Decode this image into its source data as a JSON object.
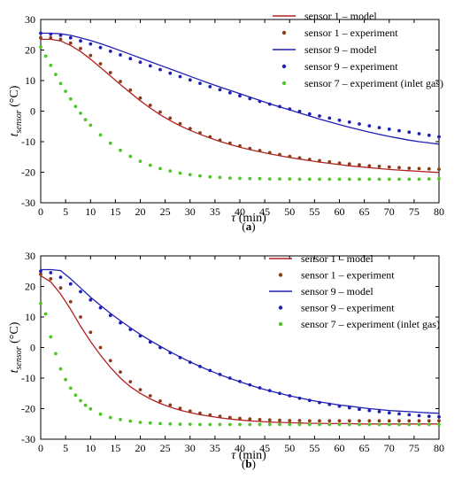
{
  "chart_data": [
    {
      "type": "line",
      "panel_label": "(a)",
      "xlabel": "τ (min)",
      "ylabel": "t sensor (°C)",
      "ylabel_main": "t",
      "ylabel_sub": "sensor",
      "ylabel_unit": "(°C)",
      "xlabel_main": "τ",
      "xlabel_unit": "(min)",
      "xlim": [
        0,
        80
      ],
      "ylim": [
        -30,
        30
      ],
      "xticks": [
        0,
        5,
        10,
        15,
        20,
        25,
        30,
        35,
        40,
        45,
        50,
        55,
        60,
        65,
        70,
        75,
        80
      ],
      "yticks": [
        -30,
        -20,
        -10,
        0,
        10,
        20,
        30
      ],
      "grid": false,
      "legend_position": "top-right",
      "series": [
        {
          "name": "sensor 1 – model",
          "kind": "line",
          "color": "#b22222",
          "x": [
            0,
            2,
            4,
            6,
            8,
            10,
            12,
            14,
            16,
            18,
            20,
            22,
            24,
            26,
            28,
            30,
            32,
            34,
            36,
            38,
            40,
            42,
            44,
            46,
            48,
            50,
            52,
            54,
            56,
            58,
            60,
            62,
            64,
            66,
            68,
            70,
            72,
            74,
            76,
            78,
            80
          ],
          "y": [
            23.5,
            23.5,
            23.0,
            21.5,
            19.5,
            17.0,
            14.3,
            11.5,
            8.7,
            6.0,
            3.4,
            1.0,
            -1.2,
            -3.1,
            -4.8,
            -6.3,
            -7.6,
            -8.8,
            -9.9,
            -10.9,
            -11.8,
            -12.6,
            -13.3,
            -14.0,
            -14.6,
            -15.2,
            -15.7,
            -16.2,
            -16.7,
            -17.1,
            -17.5,
            -17.9,
            -18.2,
            -18.5,
            -18.8,
            -19.1,
            -19.3,
            -19.5,
            -19.7,
            -19.9,
            -20.1
          ]
        },
        {
          "name": "sensor 1 – experiment",
          "kind": "points",
          "color": "#8b3a1a",
          "x": [
            0,
            2,
            4,
            6,
            8,
            10,
            12,
            14,
            16,
            18,
            20,
            22,
            24,
            26,
            28,
            30,
            32,
            34,
            36,
            38,
            40,
            42,
            44,
            46,
            48,
            50,
            52,
            54,
            56,
            58,
            60,
            62,
            64,
            66,
            68,
            70,
            72,
            74,
            76,
            78,
            80
          ],
          "y": [
            24.0,
            24.0,
            23.5,
            22.3,
            20.5,
            18.2,
            15.5,
            12.6,
            9.7,
            6.9,
            4.3,
            1.9,
            -0.3,
            -2.3,
            -4.1,
            -5.7,
            -7.1,
            -8.4,
            -9.5,
            -10.5,
            -11.4,
            -12.2,
            -12.9,
            -13.6,
            -14.2,
            -14.8,
            -15.3,
            -15.8,
            -16.2,
            -16.6,
            -17.0,
            -17.3,
            -17.6,
            -17.9,
            -18.1,
            -18.3,
            -18.5,
            -18.7,
            -18.8,
            -18.9,
            -19.0
          ]
        },
        {
          "name": "sensor 9 – model",
          "kind": "line",
          "color": "#1f1fb4",
          "x": [
            0,
            2,
            4,
            6,
            8,
            10,
            12,
            14,
            16,
            18,
            20,
            22,
            24,
            26,
            28,
            30,
            32,
            34,
            36,
            38,
            40,
            42,
            44,
            46,
            48,
            50,
            52,
            54,
            56,
            58,
            60,
            62,
            64,
            66,
            68,
            70,
            72,
            74,
            76,
            78,
            80
          ],
          "y": [
            25.5,
            25.5,
            25.3,
            24.8,
            24.0,
            23.1,
            22.1,
            21.0,
            19.8,
            18.6,
            17.4,
            16.2,
            15.0,
            13.8,
            12.6,
            11.4,
            10.2,
            9.0,
            7.9,
            6.8,
            5.7,
            4.6,
            3.5,
            2.4,
            1.4,
            0.4,
            -0.6,
            -1.6,
            -2.6,
            -3.5,
            -4.4,
            -5.3,
            -6.1,
            -6.9,
            -7.6,
            -8.3,
            -8.9,
            -9.5,
            -10.0,
            -10.4,
            -10.8
          ]
        },
        {
          "name": "sensor 9 – experiment",
          "kind": "points",
          "color": "#1f1fb4",
          "x": [
            0,
            2,
            4,
            6,
            8,
            10,
            12,
            14,
            16,
            18,
            20,
            22,
            24,
            26,
            28,
            30,
            32,
            34,
            36,
            38,
            40,
            42,
            44,
            46,
            48,
            50,
            52,
            54,
            56,
            58,
            60,
            62,
            64,
            66,
            68,
            70,
            72,
            74,
            76,
            78,
            80
          ],
          "y": [
            25.5,
            25.2,
            24.8,
            24.0,
            23.0,
            22.0,
            20.8,
            19.6,
            18.4,
            17.2,
            16.0,
            14.8,
            13.6,
            12.4,
            11.3,
            10.2,
            9.1,
            8.0,
            7.0,
            6.0,
            5.0,
            4.1,
            3.2,
            2.3,
            1.5,
            0.7,
            -0.1,
            -0.9,
            -1.6,
            -2.3,
            -3.0,
            -3.6,
            -4.2,
            -4.8,
            -5.4,
            -5.9,
            -6.4,
            -6.9,
            -7.4,
            -7.9,
            -8.4
          ]
        },
        {
          "name": "sensor 7 – experiment (inlet gas)",
          "kind": "points",
          "color": "#4ec626",
          "x": [
            0,
            1,
            2,
            3,
            4,
            5,
            6,
            7,
            8,
            9,
            10,
            12,
            14,
            16,
            18,
            20,
            22,
            24,
            26,
            28,
            30,
            32,
            34,
            36,
            38,
            40,
            42,
            44,
            46,
            48,
            50,
            52,
            54,
            56,
            58,
            60,
            62,
            64,
            66,
            68,
            70,
            72,
            74,
            76,
            78,
            80
          ],
          "y": [
            21.0,
            18.0,
            15.0,
            12.0,
            9.0,
            6.5,
            4.0,
            1.5,
            -0.7,
            -2.8,
            -4.6,
            -7.8,
            -10.5,
            -12.8,
            -14.8,
            -16.4,
            -17.7,
            -18.8,
            -19.6,
            -20.3,
            -20.8,
            -21.2,
            -21.5,
            -21.7,
            -21.9,
            -22.0,
            -22.1,
            -22.1,
            -22.2,
            -22.2,
            -22.2,
            -22.3,
            -22.3,
            -22.3,
            -22.3,
            -22.3,
            -22.3,
            -22.3,
            -22.3,
            -22.3,
            -22.3,
            -22.3,
            -22.3,
            -22.3,
            -22.2,
            -22.2
          ]
        }
      ]
    },
    {
      "type": "line",
      "panel_label": "(b)",
      "xlabel": "τ (min)",
      "ylabel": "t sensor (°C)",
      "ylabel_main": "t",
      "ylabel_sub": "sensor",
      "ylabel_unit": "(°C)",
      "xlabel_main": "τ",
      "xlabel_unit": "(min)",
      "xlim": [
        0,
        80
      ],
      "ylim": [
        -30,
        30
      ],
      "xticks": [
        0,
        5,
        10,
        15,
        20,
        25,
        30,
        35,
        40,
        45,
        50,
        55,
        60,
        65,
        70,
        75,
        80
      ],
      "yticks": [
        -30,
        -20,
        -10,
        0,
        10,
        20,
        30
      ],
      "grid": false,
      "legend_position": "top-right",
      "series": [
        {
          "name": "sensor 1 – model",
          "kind": "line",
          "color": "#b22222",
          "x": [
            0,
            2,
            4,
            6,
            8,
            10,
            12,
            14,
            16,
            18,
            20,
            22,
            24,
            26,
            28,
            30,
            32,
            34,
            36,
            38,
            40,
            42,
            44,
            46,
            48,
            50,
            52,
            54,
            56,
            58,
            60,
            62,
            64,
            66,
            68,
            70,
            72,
            74,
            76,
            78,
            80
          ],
          "y": [
            23.5,
            21.5,
            17.5,
            12.5,
            7.0,
            2.0,
            -2.5,
            -6.5,
            -10.0,
            -12.8,
            -15.0,
            -16.8,
            -18.3,
            -19.5,
            -20.5,
            -21.3,
            -22.0,
            -22.5,
            -23.0,
            -23.4,
            -23.7,
            -24.0,
            -24.2,
            -24.4,
            -24.5,
            -24.6,
            -24.7,
            -24.8,
            -24.8,
            -24.9,
            -24.9,
            -24.9,
            -25.0,
            -25.0,
            -25.0,
            -25.0,
            -25.0,
            -25.0,
            -25.0,
            -25.0,
            -25.0
          ]
        },
        {
          "name": "sensor 1 – experiment",
          "kind": "points",
          "color": "#8b3a1a",
          "x": [
            0,
            2,
            4,
            6,
            8,
            10,
            12,
            14,
            16,
            18,
            20,
            22,
            24,
            26,
            28,
            30,
            32,
            34,
            36,
            38,
            40,
            42,
            44,
            46,
            48,
            50,
            52,
            54,
            56,
            58,
            60,
            62,
            64,
            66,
            68,
            70,
            72,
            74,
            76,
            78,
            80
          ],
          "y": [
            24.0,
            22.5,
            19.5,
            15.0,
            10.0,
            5.0,
            0.0,
            -4.3,
            -8.0,
            -11.2,
            -13.8,
            -15.8,
            -17.5,
            -18.8,
            -19.9,
            -20.8,
            -21.5,
            -22.1,
            -22.5,
            -22.9,
            -23.2,
            -23.4,
            -23.6,
            -23.7,
            -23.8,
            -23.9,
            -23.9,
            -24.0,
            -24.0,
            -24.0,
            -24.0,
            -24.0,
            -24.0,
            -24.0,
            -24.0,
            -24.0,
            -24.0,
            -24.0,
            -24.0,
            -24.0,
            -24.0
          ]
        },
        {
          "name": "sensor 9 – model",
          "kind": "line",
          "color": "#1f1fb4",
          "x": [
            0,
            2,
            4,
            6,
            8,
            10,
            12,
            14,
            16,
            18,
            20,
            22,
            24,
            26,
            28,
            30,
            32,
            34,
            36,
            38,
            40,
            42,
            44,
            46,
            48,
            50,
            52,
            54,
            56,
            58,
            60,
            62,
            64,
            66,
            68,
            70,
            72,
            74,
            76,
            78,
            80
          ],
          "y": [
            25.5,
            25.5,
            25.2,
            22.5,
            19.5,
            16.5,
            13.8,
            11.2,
            8.8,
            6.5,
            4.3,
            2.3,
            0.4,
            -1.4,
            -3.1,
            -4.7,
            -6.2,
            -7.6,
            -8.9,
            -10.1,
            -11.2,
            -12.3,
            -13.3,
            -14.2,
            -15.0,
            -15.8,
            -16.5,
            -17.2,
            -17.8,
            -18.3,
            -18.8,
            -19.2,
            -19.6,
            -20.0,
            -20.3,
            -20.6,
            -20.8,
            -21.0,
            -21.2,
            -21.4,
            -21.5
          ]
        },
        {
          "name": "sensor 9 – experiment",
          "kind": "points",
          "color": "#1f1fb4",
          "x": [
            0,
            2,
            4,
            6,
            8,
            10,
            12,
            14,
            16,
            18,
            20,
            22,
            24,
            26,
            28,
            30,
            32,
            34,
            36,
            38,
            40,
            42,
            44,
            46,
            48,
            50,
            52,
            54,
            56,
            58,
            60,
            62,
            64,
            66,
            68,
            70,
            72,
            74,
            76,
            78,
            80
          ],
          "y": [
            25.0,
            24.5,
            23.0,
            20.8,
            18.3,
            15.6,
            13.0,
            10.5,
            8.1,
            5.9,
            3.8,
            1.8,
            0.0,
            -1.7,
            -3.3,
            -4.8,
            -6.2,
            -7.5,
            -8.8,
            -10.0,
            -11.1,
            -12.2,
            -13.2,
            -14.1,
            -15.0,
            -15.8,
            -16.6,
            -17.3,
            -18.0,
            -18.6,
            -19.2,
            -19.7,
            -20.2,
            -20.6,
            -21.0,
            -21.4,
            -21.7,
            -22.0,
            -22.3,
            -22.5,
            -22.7
          ]
        },
        {
          "name": "sensor 7 – experiment (inlet gas)",
          "kind": "points",
          "color": "#4ec626",
          "x": [
            0,
            1,
            2,
            3,
            4,
            5,
            6,
            7,
            8,
            9,
            10,
            12,
            14,
            16,
            18,
            20,
            22,
            24,
            26,
            28,
            30,
            32,
            34,
            36,
            38,
            40,
            42,
            44,
            46,
            48,
            50,
            52,
            54,
            56,
            58,
            60,
            62,
            64,
            66,
            68,
            70,
            72,
            74,
            76,
            78,
            80
          ],
          "y": [
            14.5,
            11.0,
            3.5,
            -2.0,
            -7.0,
            -10.5,
            -13.3,
            -15.6,
            -17.4,
            -18.9,
            -20.1,
            -21.8,
            -22.9,
            -23.6,
            -24.1,
            -24.5,
            -24.7,
            -24.9,
            -25.0,
            -25.1,
            -25.1,
            -25.2,
            -25.2,
            -25.2,
            -25.2,
            -25.2,
            -25.2,
            -25.2,
            -25.2,
            -25.2,
            -25.2,
            -25.2,
            -25.2,
            -25.2,
            -25.2,
            -25.2,
            -25.2,
            -25.2,
            -25.2,
            -25.2,
            -25.2,
            -25.2,
            -25.2,
            -25.2,
            -25.2,
            -25.2
          ]
        }
      ]
    }
  ]
}
